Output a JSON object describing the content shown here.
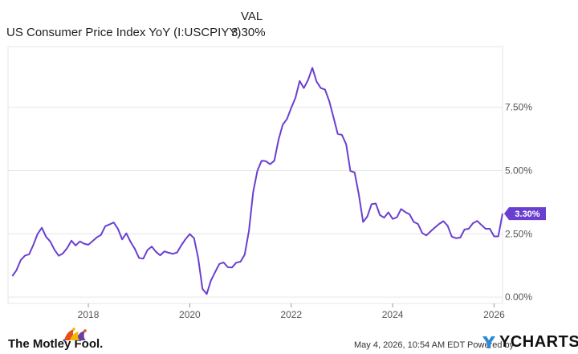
{
  "legend": {
    "column_header": "VAL",
    "series_name": "US Consumer Price Index YoY (I:USCPIYY)",
    "series_value": "3.30%"
  },
  "footer": {
    "brand_left": "The Motley Fool.",
    "timestamp": "May 4, 2026, 10:54 AM EDT Powered by",
    "brand_right": "YCHARTS"
  },
  "colors": {
    "line": "#6a3fd0",
    "label_bg": "#6a3fd0",
    "plot_bg": "#ffffff",
    "grid": "#e6e6e6",
    "axis_text": "#555555"
  },
  "chart_data": {
    "type": "line",
    "series": [
      {
        "name": "US Consumer Price Index YoY (I:USCPIYY)",
        "last_value_label": "3.30%",
        "x": [
          "2016-07",
          "2016-08",
          "2016-09",
          "2016-10",
          "2016-11",
          "2016-12",
          "2017-01",
          "2017-02",
          "2017-03",
          "2017-04",
          "2017-05",
          "2017-06",
          "2017-07",
          "2017-08",
          "2017-09",
          "2017-10",
          "2017-11",
          "2017-12",
          "2018-01",
          "2018-02",
          "2018-03",
          "2018-04",
          "2018-05",
          "2018-06",
          "2018-07",
          "2018-08",
          "2018-09",
          "2018-10",
          "2018-11",
          "2018-12",
          "2019-01",
          "2019-02",
          "2019-03",
          "2019-04",
          "2019-05",
          "2019-06",
          "2019-07",
          "2019-08",
          "2019-09",
          "2019-10",
          "2019-11",
          "2019-12",
          "2020-01",
          "2020-02",
          "2020-03",
          "2020-04",
          "2020-05",
          "2020-06",
          "2020-07",
          "2020-08",
          "2020-09",
          "2020-10",
          "2020-11",
          "2020-12",
          "2021-01",
          "2021-02",
          "2021-03",
          "2021-04",
          "2021-05",
          "2021-06",
          "2021-07",
          "2021-08",
          "2021-09",
          "2021-10",
          "2021-11",
          "2021-12",
          "2022-01",
          "2022-02",
          "2022-03",
          "2022-04",
          "2022-05",
          "2022-06",
          "2022-07",
          "2022-08",
          "2022-09",
          "2022-10",
          "2022-11",
          "2022-12",
          "2023-01",
          "2023-02",
          "2023-03",
          "2023-04",
          "2023-05",
          "2023-06",
          "2023-07",
          "2023-08",
          "2023-09",
          "2023-10",
          "2023-11",
          "2023-12",
          "2024-01",
          "2024-02",
          "2024-03",
          "2024-04",
          "2024-05",
          "2024-06",
          "2024-07",
          "2024-08",
          "2024-09",
          "2024-10",
          "2024-11",
          "2024-12",
          "2025-01",
          "2025-02",
          "2025-03",
          "2025-04",
          "2025-05",
          "2025-06",
          "2025-07",
          "2025-08",
          "2025-09",
          "2025-10",
          "2025-11",
          "2025-12",
          "2026-01",
          "2026-02",
          "2026-03"
        ],
        "values": [
          0.83,
          1.06,
          1.46,
          1.64,
          1.69,
          2.07,
          2.5,
          2.74,
          2.38,
          2.2,
          1.87,
          1.63,
          1.73,
          1.94,
          2.23,
          2.04,
          2.2,
          2.11,
          2.07,
          2.21,
          2.36,
          2.46,
          2.8,
          2.87,
          2.95,
          2.7,
          2.28,
          2.52,
          2.18,
          1.91,
          1.55,
          1.52,
          1.86,
          2.0,
          1.79,
          1.65,
          1.81,
          1.75,
          1.71,
          1.76,
          2.05,
          2.29,
          2.49,
          2.33,
          1.54,
          0.33,
          0.12,
          0.65,
          0.99,
          1.31,
          1.37,
          1.18,
          1.17,
          1.36,
          1.4,
          1.68,
          2.62,
          4.16,
          4.99,
          5.39,
          5.37,
          5.25,
          5.39,
          6.22,
          6.81,
          7.04,
          7.48,
          7.87,
          8.54,
          8.26,
          8.58,
          9.06,
          8.52,
          8.26,
          8.2,
          7.75,
          7.11,
          6.45,
          6.41,
          6.04,
          4.98,
          4.93,
          4.05,
          2.97,
          3.18,
          3.67,
          3.7,
          3.24,
          3.14,
          3.35,
          3.09,
          3.15,
          3.48,
          3.36,
          3.27,
          2.97,
          2.89,
          2.53,
          2.44,
          2.6,
          2.75,
          2.89,
          3.0,
          2.82,
          2.39,
          2.33,
          2.35,
          2.67,
          2.7,
          2.92,
          3.01,
          2.85,
          2.7,
          2.7,
          2.4,
          2.4,
          3.3
        ]
      }
    ],
    "xlabel": "",
    "ylabel": "",
    "x_ticks": [
      "2018",
      "2020",
      "2022",
      "2024",
      "2026"
    ],
    "x_range": [
      "2016-06",
      "2026-03"
    ],
    "y_ticks": [
      "0.00%",
      "2.50%",
      "5.00%",
      "7.50%"
    ],
    "ylim": [
      -0.25,
      9.9
    ],
    "grid": "horizontal",
    "legend": "top-left"
  }
}
